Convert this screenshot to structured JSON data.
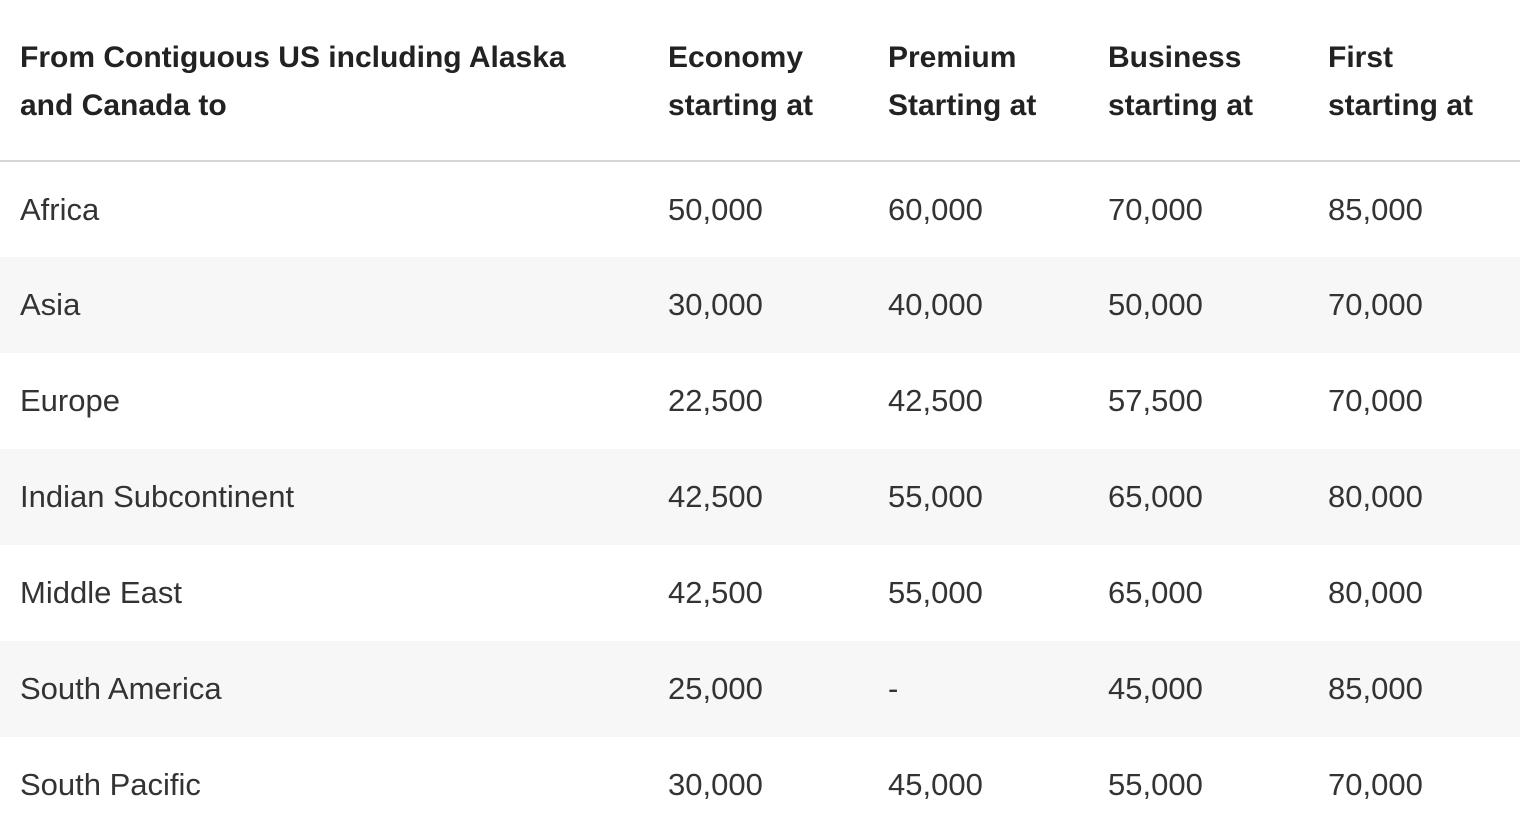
{
  "table": {
    "headers": [
      {
        "lines": [
          "From Contiguous US including Alaska",
          "and Canada to"
        ]
      },
      {
        "lines": [
          "Economy",
          "starting at"
        ]
      },
      {
        "lines": [
          "Premium",
          "Starting at"
        ]
      },
      {
        "lines": [
          "Business",
          "starting at"
        ]
      },
      {
        "lines": [
          "First",
          "starting at"
        ]
      }
    ],
    "rows": [
      {
        "region": "Africa",
        "economy": "50,000",
        "premium": "60,000",
        "business": "70,000",
        "first": "85,000"
      },
      {
        "region": "Asia",
        "economy": "30,000",
        "premium": "40,000",
        "business": "50,000",
        "first": "70,000"
      },
      {
        "region": "Europe",
        "economy": "22,500",
        "premium": "42,500",
        "business": "57,500",
        "first": "70,000"
      },
      {
        "region": "Indian Subcontinent",
        "economy": "42,500",
        "premium": "55,000",
        "business": "65,000",
        "first": "80,000"
      },
      {
        "region": "Middle East",
        "economy": "42,500",
        "premium": "55,000",
        "business": "65,000",
        "first": "80,000"
      },
      {
        "region": "South America",
        "economy": "25,000",
        "premium": "-",
        "business": "45,000",
        "first": "85,000"
      },
      {
        "region": "South Pacific",
        "economy": "30,000",
        "premium": "45,000",
        "business": "55,000",
        "first": "70,000"
      }
    ]
  },
  "colors": {
    "stripe": "#f7f7f7",
    "divider": "#d6d6d6",
    "header_text": "#222222",
    "body_text": "#333333"
  }
}
